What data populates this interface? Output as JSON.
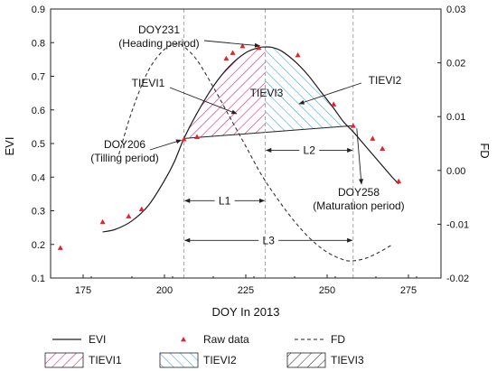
{
  "chart_data": {
    "type": "line",
    "xlabel": "DOY In 2013",
    "ylabel_left": "EVI",
    "ylabel_right": "FD",
    "xlim": [
      165,
      285
    ],
    "ylim_left": [
      0.1,
      0.9
    ],
    "ylim_right": [
      -0.02,
      0.03
    ],
    "x_ticks": [
      175,
      200,
      225,
      250,
      275
    ],
    "y_left_ticks": [
      0.1,
      0.2,
      0.3,
      0.4,
      0.5,
      0.6,
      0.7,
      0.8,
      0.9
    ],
    "y_right_ticks": [
      -0.02,
      -0.01,
      0.0,
      0.01,
      0.02,
      0.03
    ],
    "y_left_tick_labels": [
      "0.1",
      "0.2",
      "0.3",
      "0.4",
      "0.5",
      "0.6",
      "0.7",
      "0.8",
      "0.9"
    ],
    "y_right_tick_labels": [
      "-0.02",
      "-0.01",
      "0.00",
      "0.01",
      "0.02",
      "0.03"
    ],
    "series": [
      {
        "name": "EVI",
        "style": "solid",
        "axis": "left",
        "x": [
          181,
          185,
          190,
          195,
          200,
          203,
          206,
          210,
          215,
          220,
          225,
          229,
          231,
          233,
          236,
          240,
          244,
          248,
          252,
          255,
          258,
          262,
          266,
          270,
          272
        ],
        "y": [
          0.237,
          0.245,
          0.27,
          0.315,
          0.39,
          0.445,
          0.515,
          0.59,
          0.67,
          0.73,
          0.77,
          0.785,
          0.787,
          0.786,
          0.775,
          0.745,
          0.705,
          0.655,
          0.605,
          0.565,
          0.535,
          0.49,
          0.445,
          0.4,
          0.38
        ]
      },
      {
        "name": "FD",
        "style": "dashed",
        "axis": "right",
        "x": [
          186,
          190,
          195,
          200,
          204,
          206,
          210,
          215,
          220,
          225,
          230,
          235,
          240,
          245,
          250,
          255,
          258,
          262,
          266,
          270
        ],
        "y": [
          0.003,
          0.011,
          0.0185,
          0.0225,
          0.0235,
          0.023,
          0.0205,
          0.0155,
          0.01,
          0.0045,
          -0.001,
          -0.0055,
          -0.0095,
          -0.0128,
          -0.0152,
          -0.0166,
          -0.0168,
          -0.0163,
          -0.0152,
          -0.0138
        ]
      },
      {
        "name": "Raw data",
        "style": "markers",
        "axis": "left",
        "x": [
          168,
          181,
          189,
          193,
          206,
          210,
          219,
          221,
          224,
          229,
          241,
          252,
          258,
          264,
          267,
          272
        ],
        "y": [
          0.19,
          0.267,
          0.284,
          0.305,
          0.513,
          0.52,
          0.753,
          0.77,
          0.79,
          0.785,
          0.763,
          0.617,
          0.553,
          0.515,
          0.485,
          0.388
        ]
      }
    ],
    "vlines": [
      206,
      231,
      258
    ],
    "baseline_points": [
      [
        206,
        0.515
      ],
      [
        258,
        0.553
      ]
    ],
    "regions": [
      {
        "name": "TIEVI1",
        "from": 206,
        "to": 231
      },
      {
        "name": "TIEVI2",
        "from": 231,
        "to": 258
      },
      {
        "name": "TIEVI3",
        "from": 206,
        "to": 258
      }
    ],
    "annotations": [
      {
        "id": "doy231",
        "line1": "DOY231",
        "line2": "(Heading period)"
      },
      {
        "id": "doy206",
        "line1": "DOY206",
        "line2": "(Tilling period)"
      },
      {
        "id": "doy258",
        "line1": "DOY258",
        "line2": "(Maturation period)"
      },
      {
        "id": "tievi1",
        "line1": "TIEVI1"
      },
      {
        "id": "tievi2",
        "line1": "TIEVI2"
      },
      {
        "id": "tievi3",
        "line1": "TIEVI3"
      }
    ],
    "intervals": [
      {
        "name": "L1",
        "from": 206,
        "to": 231,
        "y": 0.33
      },
      {
        "name": "L2",
        "from": 231,
        "to": 258,
        "y": 0.48
      },
      {
        "name": "L3",
        "from": 206,
        "to": 258,
        "y": 0.212
      }
    ],
    "legend": {
      "placement": "bottom",
      "entries": [
        {
          "label": "EVI",
          "kind": "solid"
        },
        {
          "label": "Raw data",
          "kind": "marker"
        },
        {
          "label": "FD",
          "kind": "dashed"
        },
        {
          "label": "TIEVI1",
          "kind": "hatch-pink"
        },
        {
          "label": "TIEVI2",
          "kind": "hatch-blue"
        },
        {
          "label": "TIEVI3",
          "kind": "hatch-black"
        }
      ]
    },
    "colors": {
      "evi": "#1a1a1a",
      "fd": "#333333",
      "marker": "#e8202a",
      "tievi1": "#d6247c",
      "tievi2": "#4aa3d8",
      "tievi3": "#222222",
      "vline": "#999999"
    }
  }
}
